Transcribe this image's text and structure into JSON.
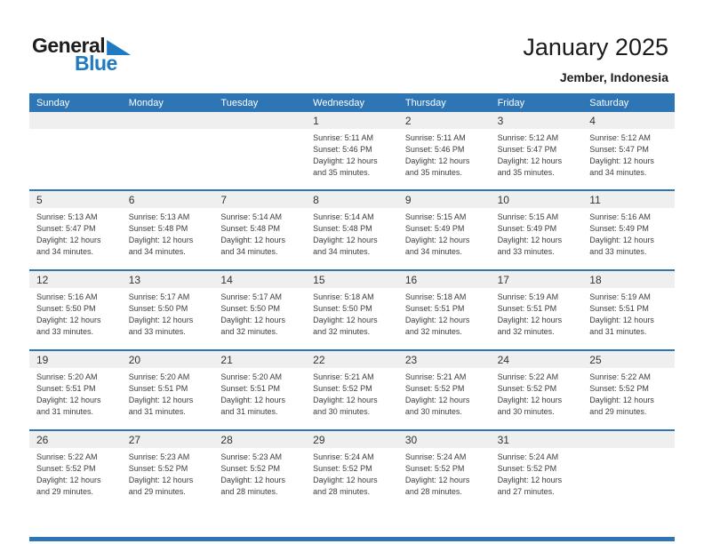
{
  "logo": {
    "part1": "General",
    "part2": "Blue"
  },
  "title": "January 2025",
  "subtitle": "Jember, Indonesia",
  "colors": {
    "header_blue": "#2E75B6",
    "band_gray": "#EFEFEF",
    "logo_blue": "#2079C3"
  },
  "weekdays": [
    "Sunday",
    "Monday",
    "Tuesday",
    "Wednesday",
    "Thursday",
    "Friday",
    "Saturday"
  ],
  "weeks": [
    [
      null,
      null,
      null,
      {
        "day": "1",
        "sunrise": "Sunrise: 5:11 AM",
        "sunset": "Sunset: 5:46 PM",
        "daylight1": "Daylight: 12 hours",
        "daylight2": "and 35 minutes."
      },
      {
        "day": "2",
        "sunrise": "Sunrise: 5:11 AM",
        "sunset": "Sunset: 5:46 PM",
        "daylight1": "Daylight: 12 hours",
        "daylight2": "and 35 minutes."
      },
      {
        "day": "3",
        "sunrise": "Sunrise: 5:12 AM",
        "sunset": "Sunset: 5:47 PM",
        "daylight1": "Daylight: 12 hours",
        "daylight2": "and 35 minutes."
      },
      {
        "day": "4",
        "sunrise": "Sunrise: 5:12 AM",
        "sunset": "Sunset: 5:47 PM",
        "daylight1": "Daylight: 12 hours",
        "daylight2": "and 34 minutes."
      }
    ],
    [
      {
        "day": "5",
        "sunrise": "Sunrise: 5:13 AM",
        "sunset": "Sunset: 5:47 PM",
        "daylight1": "Daylight: 12 hours",
        "daylight2": "and 34 minutes."
      },
      {
        "day": "6",
        "sunrise": "Sunrise: 5:13 AM",
        "sunset": "Sunset: 5:48 PM",
        "daylight1": "Daylight: 12 hours",
        "daylight2": "and 34 minutes."
      },
      {
        "day": "7",
        "sunrise": "Sunrise: 5:14 AM",
        "sunset": "Sunset: 5:48 PM",
        "daylight1": "Daylight: 12 hours",
        "daylight2": "and 34 minutes."
      },
      {
        "day": "8",
        "sunrise": "Sunrise: 5:14 AM",
        "sunset": "Sunset: 5:48 PM",
        "daylight1": "Daylight: 12 hours",
        "daylight2": "and 34 minutes."
      },
      {
        "day": "9",
        "sunrise": "Sunrise: 5:15 AM",
        "sunset": "Sunset: 5:49 PM",
        "daylight1": "Daylight: 12 hours",
        "daylight2": "and 34 minutes."
      },
      {
        "day": "10",
        "sunrise": "Sunrise: 5:15 AM",
        "sunset": "Sunset: 5:49 PM",
        "daylight1": "Daylight: 12 hours",
        "daylight2": "and 33 minutes."
      },
      {
        "day": "11",
        "sunrise": "Sunrise: 5:16 AM",
        "sunset": "Sunset: 5:49 PM",
        "daylight1": "Daylight: 12 hours",
        "daylight2": "and 33 minutes."
      }
    ],
    [
      {
        "day": "12",
        "sunrise": "Sunrise: 5:16 AM",
        "sunset": "Sunset: 5:50 PM",
        "daylight1": "Daylight: 12 hours",
        "daylight2": "and 33 minutes."
      },
      {
        "day": "13",
        "sunrise": "Sunrise: 5:17 AM",
        "sunset": "Sunset: 5:50 PM",
        "daylight1": "Daylight: 12 hours",
        "daylight2": "and 33 minutes."
      },
      {
        "day": "14",
        "sunrise": "Sunrise: 5:17 AM",
        "sunset": "Sunset: 5:50 PM",
        "daylight1": "Daylight: 12 hours",
        "daylight2": "and 32 minutes."
      },
      {
        "day": "15",
        "sunrise": "Sunrise: 5:18 AM",
        "sunset": "Sunset: 5:50 PM",
        "daylight1": "Daylight: 12 hours",
        "daylight2": "and 32 minutes."
      },
      {
        "day": "16",
        "sunrise": "Sunrise: 5:18 AM",
        "sunset": "Sunset: 5:51 PM",
        "daylight1": "Daylight: 12 hours",
        "daylight2": "and 32 minutes."
      },
      {
        "day": "17",
        "sunrise": "Sunrise: 5:19 AM",
        "sunset": "Sunset: 5:51 PM",
        "daylight1": "Daylight: 12 hours",
        "daylight2": "and 32 minutes."
      },
      {
        "day": "18",
        "sunrise": "Sunrise: 5:19 AM",
        "sunset": "Sunset: 5:51 PM",
        "daylight1": "Daylight: 12 hours",
        "daylight2": "and 31 minutes."
      }
    ],
    [
      {
        "day": "19",
        "sunrise": "Sunrise: 5:20 AM",
        "sunset": "Sunset: 5:51 PM",
        "daylight1": "Daylight: 12 hours",
        "daylight2": "and 31 minutes."
      },
      {
        "day": "20",
        "sunrise": "Sunrise: 5:20 AM",
        "sunset": "Sunset: 5:51 PM",
        "daylight1": "Daylight: 12 hours",
        "daylight2": "and 31 minutes."
      },
      {
        "day": "21",
        "sunrise": "Sunrise: 5:20 AM",
        "sunset": "Sunset: 5:51 PM",
        "daylight1": "Daylight: 12 hours",
        "daylight2": "and 31 minutes."
      },
      {
        "day": "22",
        "sunrise": "Sunrise: 5:21 AM",
        "sunset": "Sunset: 5:52 PM",
        "daylight1": "Daylight: 12 hours",
        "daylight2": "and 30 minutes."
      },
      {
        "day": "23",
        "sunrise": "Sunrise: 5:21 AM",
        "sunset": "Sunset: 5:52 PM",
        "daylight1": "Daylight: 12 hours",
        "daylight2": "and 30 minutes."
      },
      {
        "day": "24",
        "sunrise": "Sunrise: 5:22 AM",
        "sunset": "Sunset: 5:52 PM",
        "daylight1": "Daylight: 12 hours",
        "daylight2": "and 30 minutes."
      },
      {
        "day": "25",
        "sunrise": "Sunrise: 5:22 AM",
        "sunset": "Sunset: 5:52 PM",
        "daylight1": "Daylight: 12 hours",
        "daylight2": "and 29 minutes."
      }
    ],
    [
      {
        "day": "26",
        "sunrise": "Sunrise: 5:22 AM",
        "sunset": "Sunset: 5:52 PM",
        "daylight1": "Daylight: 12 hours",
        "daylight2": "and 29 minutes."
      },
      {
        "day": "27",
        "sunrise": "Sunrise: 5:23 AM",
        "sunset": "Sunset: 5:52 PM",
        "daylight1": "Daylight: 12 hours",
        "daylight2": "and 29 minutes."
      },
      {
        "day": "28",
        "sunrise": "Sunrise: 5:23 AM",
        "sunset": "Sunset: 5:52 PM",
        "daylight1": "Daylight: 12 hours",
        "daylight2": "and 28 minutes."
      },
      {
        "day": "29",
        "sunrise": "Sunrise: 5:24 AM",
        "sunset": "Sunset: 5:52 PM",
        "daylight1": "Daylight: 12 hours",
        "daylight2": "and 28 minutes."
      },
      {
        "day": "30",
        "sunrise": "Sunrise: 5:24 AM",
        "sunset": "Sunset: 5:52 PM",
        "daylight1": "Daylight: 12 hours",
        "daylight2": "and 28 minutes."
      },
      {
        "day": "31",
        "sunrise": "Sunrise: 5:24 AM",
        "sunset": "Sunset: 5:52 PM",
        "daylight1": "Daylight: 12 hours",
        "daylight2": "and 27 minutes."
      },
      null
    ]
  ]
}
